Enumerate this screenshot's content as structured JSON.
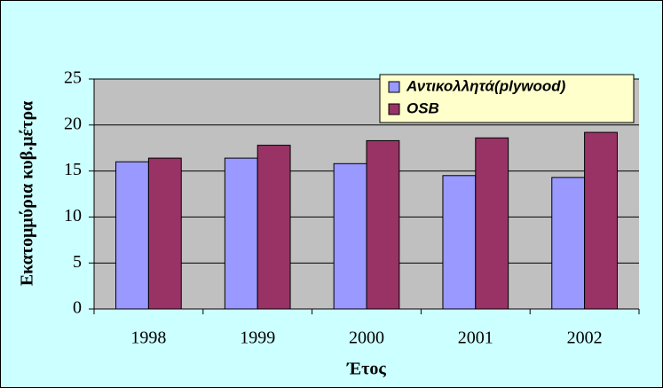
{
  "chart_data": {
    "type": "bar",
    "categories": [
      "1998",
      "1999",
      "2000",
      "2001",
      "2002"
    ],
    "series": [
      {
        "name": "Αντικολλητά(plywood)",
        "color": "#9999ff",
        "values": [
          16.0,
          16.4,
          15.8,
          14.5,
          14.3
        ]
      },
      {
        "name": "OSB",
        "color": "#993366",
        "values": [
          16.4,
          17.8,
          18.3,
          18.6,
          19.2
        ]
      }
    ],
    "xlabel": "Έτος",
    "ylabel": "Εκατομμύρια κυβ.μέτρα",
    "ylim": [
      0,
      25
    ],
    "yticks": [
      0,
      5,
      10,
      15,
      20,
      25
    ],
    "grid": true,
    "legend": "top-right"
  }
}
